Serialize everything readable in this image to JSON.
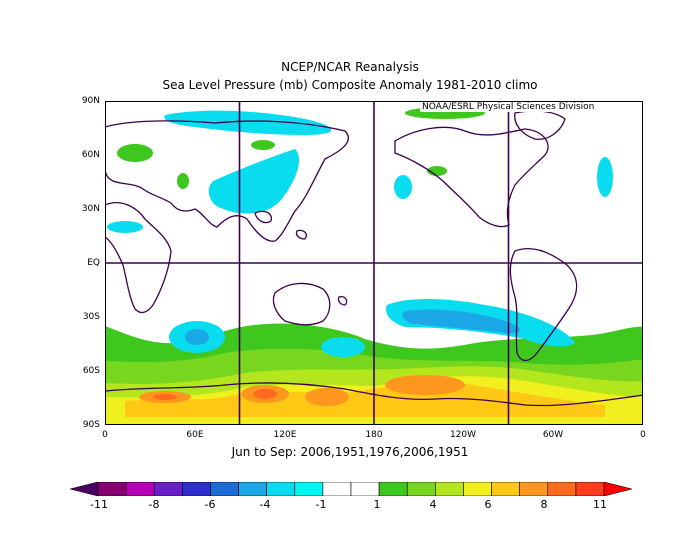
{
  "title": "NCEP/NCAR Reanalysis",
  "subtitle": "Sea Level Pressure (mb) Composite Anomaly 1981-2010 climo",
  "credit": "NOAA/ESRL Physical Sciences Division",
  "period": "Jun to Sep: 2006,1951,1976,2006,1951",
  "lat_labels": [
    "90N",
    "60N",
    "30N",
    "EQ",
    "30S",
    "60S",
    "90S"
  ],
  "lon_labels": [
    "0",
    "60E",
    "120E",
    "180",
    "120W",
    "60W",
    "0"
  ],
  "colorbar": {
    "labels": [
      "-11",
      "-8",
      "-6",
      "-4",
      "-1",
      "1",
      "4",
      "6",
      "8",
      "11"
    ],
    "colors": [
      "#4b0063",
      "#86006f",
      "#b800b8",
      "#6a1ec9",
      "#2d2dd0",
      "#1e6bd6",
      "#1aa8e6",
      "#0adcf0",
      "#00f7f0",
      "#ffffff",
      "#ffffff",
      "#3ec81e",
      "#78d61e",
      "#b4e61e",
      "#f0f01e",
      "#ffc814",
      "#ff961e",
      "#ff6a1e",
      "#ff3c1e",
      "#ff0000"
    ]
  }
}
